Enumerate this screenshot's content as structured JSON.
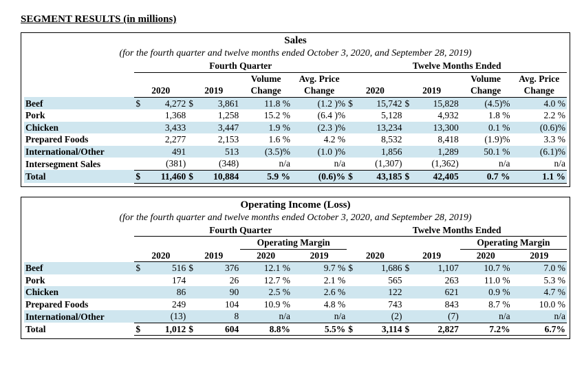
{
  "page": {
    "title": "SEGMENT RESULTS (in millions)"
  },
  "sales": {
    "title": "Sales",
    "subtitle": "(for the fourth quarter and twelve months ended October 3, 2020, and September 28, 2019)",
    "group_q": "Fourth Quarter",
    "group_t": "Twelve Months Ended",
    "hdr": {
      "y20": "2020",
      "y19": "2019",
      "vol": "Volume",
      "chg": "Change",
      "ap": "Avg. Price"
    },
    "rows": [
      {
        "name": "Beef",
        "q20": "4,272",
        "q19": "3,861",
        "qv": "11.8 %",
        "qp": "(1.2 )%",
        "t20": "15,742",
        "t19": "15,828",
        "tv": "(4.5)%",
        "tp": "4.0 %"
      },
      {
        "name": "Pork",
        "q20": "1,368",
        "q19": "1,258",
        "qv": "15.2 %",
        "qp": "(6.4 )%",
        "t20": "5,128",
        "t19": "4,932",
        "tv": "1.8 %",
        "tp": "2.2 %"
      },
      {
        "name": "Chicken",
        "q20": "3,433",
        "q19": "3,447",
        "qv": "1.9 %",
        "qp": "(2.3 )%",
        "t20": "13,234",
        "t19": "13,300",
        "tv": "0.1 %",
        "tp": "(0.6)%"
      },
      {
        "name": "Prepared Foods",
        "q20": "2,277",
        "q19": "2,153",
        "qv": "1.6 %",
        "qp": "4.2  %",
        "t20": "8,532",
        "t19": "8,418",
        "tv": "(1.9)%",
        "tp": "3.3 %"
      },
      {
        "name": "International/Other",
        "q20": "491",
        "q19": "513",
        "qv": "(3.5)%",
        "qp": "(1.0 )%",
        "t20": "1,856",
        "t19": "1,289",
        "tv": "50.1 %",
        "tp": "(6.1)%"
      },
      {
        "name": "Intersegment Sales",
        "q20": "(381)",
        "q19": "(348)",
        "qv": "n/a",
        "qp": "n/a",
        "t20": "(1,307)",
        "t19": "(1,362)",
        "tv": "n/a",
        "tp": "n/a"
      }
    ],
    "total": {
      "name": "Total",
      "q20": "11,460",
      "q19": "10,884",
      "qv": "5.9 %",
      "qp": "(0.6)%",
      "t20": "43,185",
      "t19": "42,405",
      "tv": "0.7 %",
      "tp": "1.1 %"
    }
  },
  "oi": {
    "title": "Operating Income (Loss)",
    "subtitle": "(for the fourth quarter and twelve months ended October 3, 2020, and September 28, 2019)",
    "group_q": "Fourth Quarter",
    "group_t": "Twelve Months Ended",
    "hdr": {
      "y20": "2020",
      "y19": "2019",
      "om": "Operating Margin"
    },
    "rows": [
      {
        "name": "Beef",
        "q20": "516",
        "q19": "376",
        "qm20": "12.1 %",
        "qm19": "9.7 %",
        "t20": "1,686",
        "t19": "1,107",
        "tm20": "10.7 %",
        "tm19": "7.0 %"
      },
      {
        "name": "Pork",
        "q20": "174",
        "q19": "26",
        "qm20": "12.7 %",
        "qm19": "2.1 %",
        "t20": "565",
        "t19": "263",
        "tm20": "11.0 %",
        "tm19": "5.3 %"
      },
      {
        "name": "Chicken",
        "q20": "86",
        "q19": "90",
        "qm20": "2.5 %",
        "qm19": "2.6 %",
        "t20": "122",
        "t19": "621",
        "tm20": "0.9 %",
        "tm19": "4.7 %"
      },
      {
        "name": "Prepared Foods",
        "q20": "249",
        "q19": "104",
        "qm20": "10.9 %",
        "qm19": "4.8 %",
        "t20": "743",
        "t19": "843",
        "tm20": "8.7 %",
        "tm19": "10.0 %"
      },
      {
        "name": "International/Other",
        "q20": "(13)",
        "q19": "8",
        "qm20": "n/a",
        "qm19": "n/a",
        "t20": "(2)",
        "t19": "(7)",
        "tm20": "n/a",
        "tm19": "n/a"
      }
    ],
    "total": {
      "name": "Total",
      "q20": "1,012",
      "q19": "604",
      "qm20": "8.8%",
      "qm19": "5.5%",
      "t20": "3,114",
      "t19": "2,827",
      "tm20": "7.2%",
      "tm19": "6.7%"
    }
  },
  "style": {
    "shade_color": "#cfe6ef",
    "font_family": "Times New Roman",
    "shaded_row_indices": [
      0,
      2,
      4
    ]
  }
}
